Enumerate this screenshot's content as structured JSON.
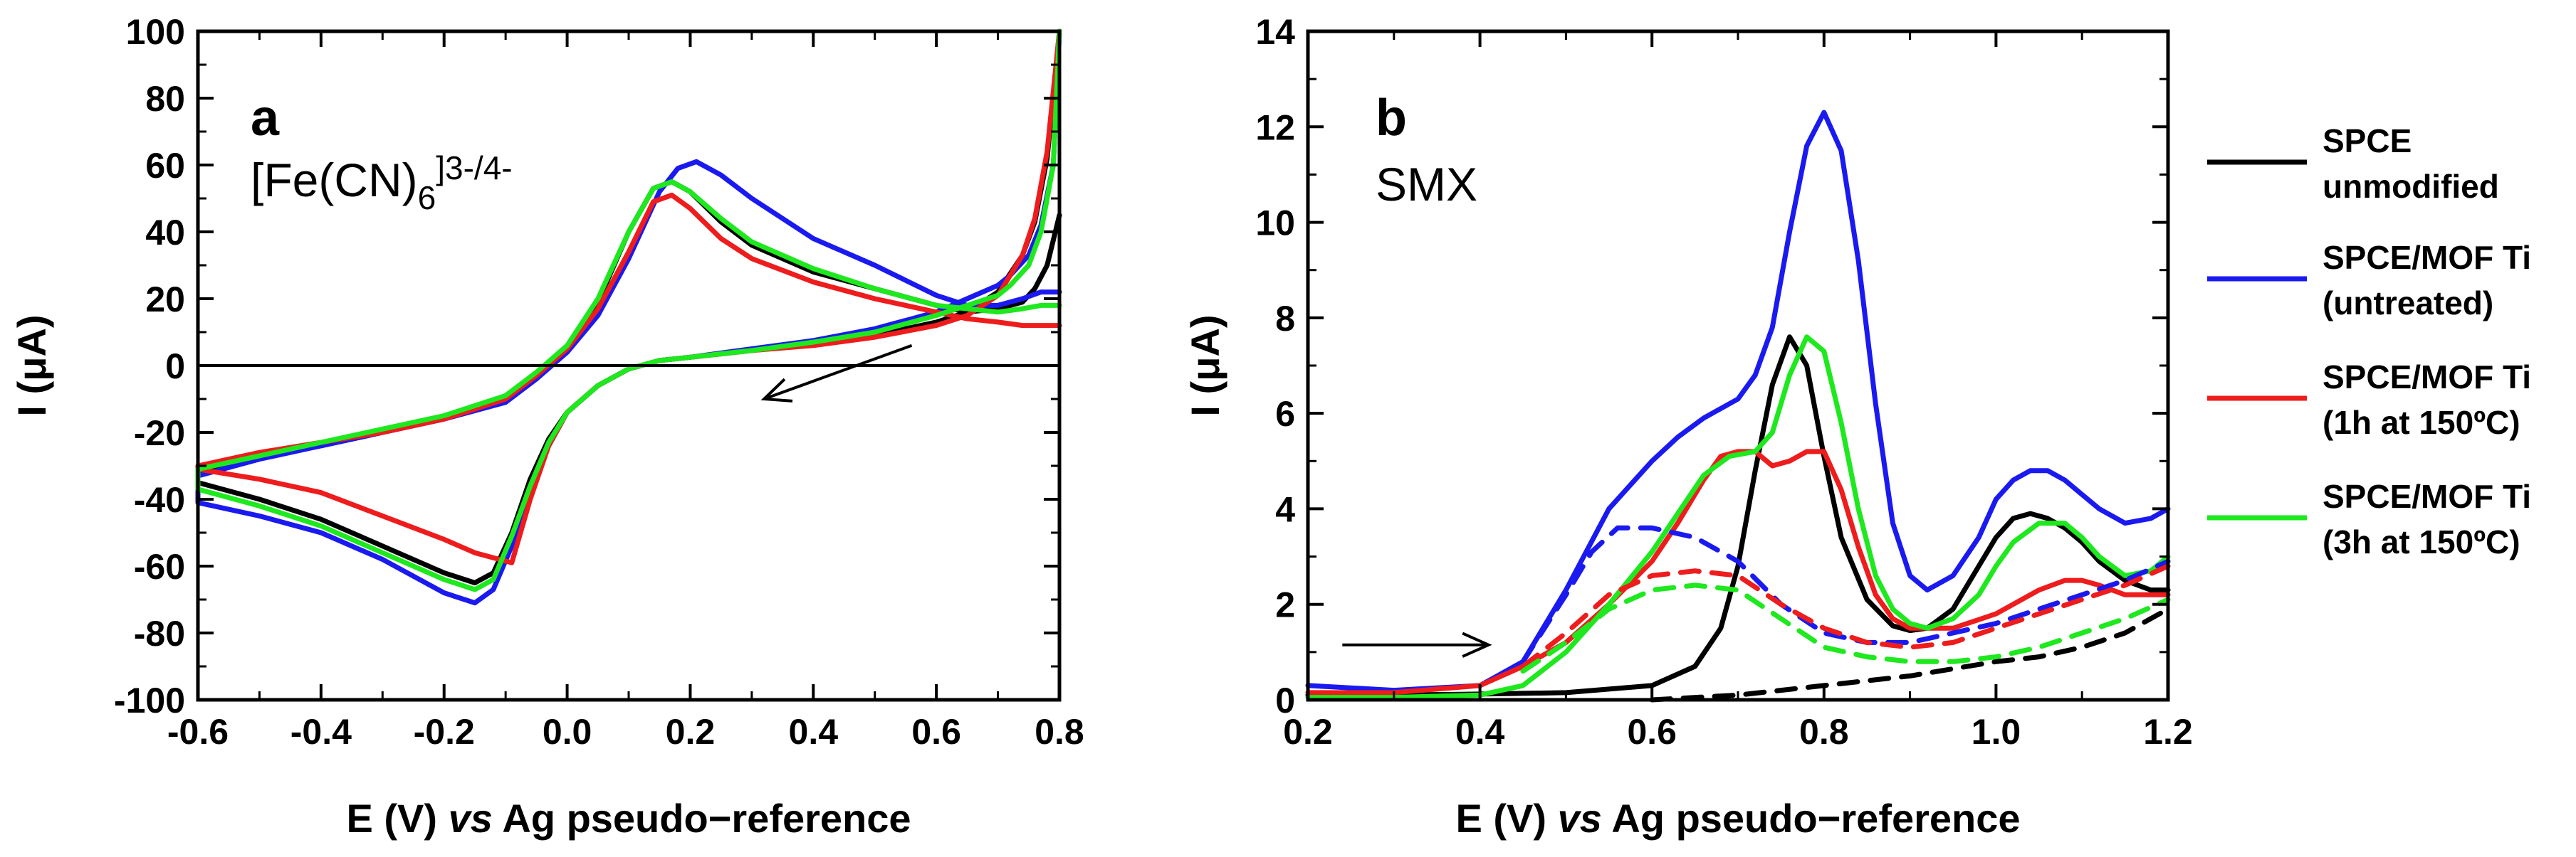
{
  "colors": {
    "black": "#000000",
    "blue": "#1a1af0",
    "red": "#ee1c1c",
    "green": "#1ee81e"
  },
  "chart_data": [
    {
      "type": "line",
      "panel": "a",
      "label": "[Fe(CN)6]3-/4-",
      "label_main": "[Fe(CN)",
      "label_sub": "6",
      "label_sup": "]3-/4-",
      "xlabel_pre": "E (V) ",
      "xlabel_it": "vs",
      "xlabel_post": " Ag pseudo−reference",
      "ylabel": "I (μA)",
      "xlim": [
        -0.6,
        0.8
      ],
      "ylim": [
        -100,
        100
      ],
      "xticks": [
        -0.6,
        -0.4,
        -0.2,
        0.0,
        0.2,
        0.4,
        0.6,
        0.8
      ],
      "xtick_labels": [
        "-0.6",
        "-0.4",
        "-0.2",
        "0.0",
        "0.2",
        "0.4",
        "0.6",
        "0.8"
      ],
      "yticks": [
        100,
        80,
        60,
        40,
        20,
        0,
        -20,
        -40,
        -60,
        -80,
        -100
      ],
      "ytick_labels": [
        "100",
        "80",
        "60",
        "40",
        "20",
        "0",
        "-20",
        "-40",
        "-60",
        "-80",
        "-100"
      ],
      "zero_line": true,
      "arrow": {
        "from": [
          0.56,
          6
        ],
        "to": [
          0.32,
          -10
        ]
      },
      "series": [
        {
          "name": "black",
          "color": "#000000",
          "x": [
            0.8,
            0.78,
            0.76,
            0.74,
            0.7,
            0.65,
            0.6,
            0.5,
            0.4,
            0.3,
            0.2,
            0.15,
            0.1,
            0.05,
            0.0,
            -0.03,
            -0.06,
            -0.09,
            -0.12,
            -0.15,
            -0.2,
            -0.3,
            -0.4,
            -0.5,
            -0.6,
            -0.6,
            -0.5,
            -0.4,
            -0.3,
            -0.2,
            -0.1,
            -0.05,
            0.0,
            0.05,
            0.1,
            0.14,
            0.17,
            0.2,
            0.25,
            0.3,
            0.4,
            0.5,
            0.6,
            0.65,
            0.7,
            0.74,
            0.76,
            0.78,
            0.8
          ],
          "y": [
            100,
            62,
            43,
            33,
            22,
            16,
            13,
            9,
            6.5,
            4.5,
            2.5,
            1.5,
            -1,
            -6,
            -14,
            -22,
            -34,
            -50,
            -62,
            -65,
            -62,
            -54,
            -46,
            -40,
            -35,
            -32,
            -27,
            -24,
            -20,
            -16,
            -10,
            -3,
            5,
            19,
            40,
            53,
            55,
            52,
            43,
            36,
            28,
            23,
            18,
            16,
            17,
            19,
            23,
            30,
            45
          ]
        },
        {
          "name": "blue",
          "color": "#1a1af0",
          "x": [
            0.8,
            0.79,
            0.77,
            0.75,
            0.72,
            0.7,
            0.65,
            0.6,
            0.5,
            0.4,
            0.3,
            0.2,
            0.15,
            0.1,
            0.05,
            0.0,
            -0.03,
            -0.06,
            -0.09,
            -0.12,
            -0.15,
            -0.2,
            -0.3,
            -0.4,
            -0.5,
            -0.6,
            -0.6,
            -0.5,
            -0.4,
            -0.3,
            -0.2,
            -0.1,
            -0.05,
            0.0,
            0.05,
            0.1,
            0.15,
            0.18,
            0.21,
            0.25,
            0.3,
            0.4,
            0.5,
            0.6,
            0.65,
            0.7,
            0.74,
            0.77,
            0.8
          ],
          "y": [
            100,
            60,
            42,
            33,
            27,
            24,
            20,
            16,
            11,
            7.5,
            5,
            2.5,
            1.5,
            -1,
            -6,
            -14,
            -24,
            -37,
            -54,
            -67,
            -71,
            -68,
            -58,
            -50,
            -45,
            -41,
            -33,
            -28,
            -24,
            -20,
            -16,
            -11,
            -4,
            4,
            15,
            32,
            52,
            59,
            61,
            57,
            50,
            38,
            30,
            21,
            18,
            18,
            20,
            22,
            22
          ]
        },
        {
          "name": "red",
          "color": "#ee1c1c",
          "x": [
            0.8,
            0.78,
            0.76,
            0.74,
            0.7,
            0.65,
            0.6,
            0.5,
            0.4,
            0.3,
            0.2,
            0.15,
            0.1,
            0.05,
            0.0,
            -0.03,
            -0.06,
            -0.09,
            -0.15,
            -0.2,
            -0.3,
            -0.4,
            -0.5,
            -0.6,
            -0.6,
            -0.5,
            -0.4,
            -0.3,
            -0.2,
            -0.1,
            -0.05,
            0.0,
            0.05,
            0.1,
            0.14,
            0.17,
            0.2,
            0.25,
            0.3,
            0.4,
            0.5,
            0.6,
            0.65,
            0.7,
            0.74,
            0.77,
            0.8
          ],
          "y": [
            100,
            64,
            44,
            33,
            21,
            15,
            12,
            8.5,
            6,
            4.5,
            2.5,
            1.5,
            -1,
            -6,
            -14,
            -24,
            -40,
            -59,
            -56,
            -52,
            -45,
            -38,
            -34,
            -31,
            -30,
            -26,
            -23,
            -20,
            -16,
            -10,
            -3,
            5,
            17,
            34,
            49,
            51,
            47,
            38,
            32,
            25,
            20,
            16,
            14,
            13,
            12,
            12,
            12
          ]
        },
        {
          "name": "green",
          "color": "#1ee81e",
          "x": [
            0.8,
            0.79,
            0.77,
            0.75,
            0.72,
            0.7,
            0.65,
            0.6,
            0.5,
            0.4,
            0.3,
            0.2,
            0.15,
            0.1,
            0.05,
            0.0,
            -0.03,
            -0.06,
            -0.09,
            -0.12,
            -0.15,
            -0.2,
            -0.3,
            -0.4,
            -0.5,
            -0.6,
            -0.6,
            -0.5,
            -0.4,
            -0.3,
            -0.2,
            -0.1,
            -0.05,
            0.0,
            0.05,
            0.1,
            0.14,
            0.17,
            0.2,
            0.25,
            0.3,
            0.4,
            0.5,
            0.6,
            0.65,
            0.7,
            0.74,
            0.77,
            0.8
          ],
          "y": [
            100,
            60,
            40,
            30,
            24,
            21,
            18,
            15,
            10,
            7,
            4.5,
            2.5,
            1.5,
            -1,
            -6,
            -14,
            -23,
            -36,
            -51,
            -64,
            -67,
            -64,
            -56,
            -48,
            -42,
            -37,
            -31,
            -27,
            -23,
            -19,
            -15,
            -9,
            -2,
            6,
            20,
            40,
            53,
            55,
            52,
            44,
            37,
            29,
            23,
            18,
            17,
            16,
            17,
            18,
            18
          ]
        }
      ]
    },
    {
      "type": "line",
      "panel": "b",
      "label": "SMX",
      "xlabel_pre": "E (V) ",
      "xlabel_it": "vs",
      "xlabel_post": " Ag pseudo−reference",
      "ylabel": "I (μA)",
      "xlim": [
        0.2,
        1.2
      ],
      "ylim": [
        0,
        14
      ],
      "xticks": [
        0.2,
        0.4,
        0.6,
        0.8,
        1.0,
        1.2
      ],
      "xtick_labels": [
        "0.2",
        "0.4",
        "0.6",
        "0.8",
        "1.0",
        "1.2"
      ],
      "yticks": [
        0,
        2,
        4,
        6,
        8,
        10,
        12,
        14
      ],
      "ytick_labels": [
        "0",
        "2",
        "4",
        "6",
        "8",
        "10",
        "12",
        "14"
      ],
      "arrow": {
        "from": [
          0.24,
          1.15
        ],
        "to": [
          0.41,
          1.15
        ]
      },
      "legend": [
        {
          "line1": "SPCE",
          "line2": "unmodified",
          "color": "#000000"
        },
        {
          "line1": "SPCE/MOF Ti",
          "line2": "(untreated)",
          "color": "#1a1af0"
        },
        {
          "line1": "SPCE/MOF Ti",
          "line2": "(1h at 150ºC)",
          "color": "#ee1c1c"
        },
        {
          "line1": "SPCE/MOF Ti",
          "line2": "(3h at 150ºC)",
          "color": "#1ee81e"
        }
      ],
      "series": [
        {
          "name": "SPCE unmodified",
          "color": "#000000",
          "dashed": false,
          "x": [
            0.2,
            0.3,
            0.4,
            0.5,
            0.6,
            0.65,
            0.68,
            0.7,
            0.72,
            0.74,
            0.76,
            0.78,
            0.8,
            0.82,
            0.85,
            0.88,
            0.9,
            0.92,
            0.95,
            0.98,
            1.0,
            1.02,
            1.04,
            1.06,
            1.08,
            1.1,
            1.12,
            1.15,
            1.18,
            1.2
          ],
          "y": [
            0.1,
            0.1,
            0.12,
            0.15,
            0.3,
            0.7,
            1.5,
            2.8,
            4.8,
            6.6,
            7.6,
            7.0,
            5.1,
            3.4,
            2.1,
            1.55,
            1.45,
            1.5,
            1.9,
            2.8,
            3.4,
            3.8,
            3.9,
            3.8,
            3.6,
            3.3,
            2.9,
            2.5,
            2.3,
            2.3
          ]
        },
        {
          "name": "SPCE/MOF Ti (untreated)",
          "color": "#1a1af0",
          "dashed": false,
          "x": [
            0.2,
            0.3,
            0.4,
            0.45,
            0.5,
            0.55,
            0.58,
            0.6,
            0.63,
            0.66,
            0.7,
            0.72,
            0.74,
            0.76,
            0.78,
            0.8,
            0.82,
            0.84,
            0.86,
            0.88,
            0.9,
            0.92,
            0.95,
            0.98,
            1.0,
            1.02,
            1.04,
            1.06,
            1.08,
            1.1,
            1.12,
            1.15,
            1.18,
            1.2
          ],
          "y": [
            0.3,
            0.2,
            0.3,
            0.8,
            2.3,
            4.0,
            4.6,
            5.0,
            5.5,
            5.9,
            6.3,
            6.8,
            7.8,
            9.8,
            11.6,
            12.3,
            11.5,
            9.2,
            6.2,
            3.7,
            2.6,
            2.3,
            2.6,
            3.4,
            4.2,
            4.6,
            4.8,
            4.8,
            4.6,
            4.3,
            4.0,
            3.7,
            3.8,
            4.0
          ]
        },
        {
          "name": "SPCE/MOF Ti (1h at 150ºC)",
          "color": "#ee1c1c",
          "dashed": false,
          "x": [
            0.2,
            0.3,
            0.4,
            0.45,
            0.5,
            0.55,
            0.6,
            0.63,
            0.66,
            0.68,
            0.7,
            0.72,
            0.74,
            0.76,
            0.78,
            0.8,
            0.82,
            0.84,
            0.86,
            0.88,
            0.9,
            0.95,
            1.0,
            1.05,
            1.08,
            1.1,
            1.12,
            1.15,
            1.2
          ],
          "y": [
            0.15,
            0.15,
            0.3,
            0.7,
            1.2,
            2.0,
            2.9,
            3.7,
            4.6,
            5.1,
            5.2,
            5.2,
            4.9,
            5.0,
            5.2,
            5.2,
            4.4,
            3.2,
            2.2,
            1.7,
            1.5,
            1.5,
            1.8,
            2.3,
            2.5,
            2.5,
            2.4,
            2.2,
            2.2
          ]
        },
        {
          "name": "SPCE/MOF Ti (3h at 150ºC)",
          "color": "#1ee81e",
          "dashed": false,
          "x": [
            0.2,
            0.3,
            0.4,
            0.45,
            0.5,
            0.55,
            0.6,
            0.63,
            0.66,
            0.69,
            0.72,
            0.74,
            0.76,
            0.78,
            0.8,
            0.82,
            0.84,
            0.86,
            0.88,
            0.9,
            0.92,
            0.95,
            0.98,
            1.0,
            1.02,
            1.05,
            1.08,
            1.1,
            1.12,
            1.15,
            1.18,
            1.2
          ],
          "y": [
            0.05,
            0.05,
            0.1,
            0.3,
            1.0,
            2.0,
            3.1,
            3.9,
            4.7,
            5.1,
            5.2,
            5.6,
            6.8,
            7.6,
            7.3,
            5.8,
            4.0,
            2.6,
            1.9,
            1.6,
            1.5,
            1.7,
            2.2,
            2.8,
            3.3,
            3.7,
            3.7,
            3.4,
            3.0,
            2.6,
            2.7,
            3.0
          ]
        },
        {
          "name": "SPCE unmodified blank",
          "color": "#000000",
          "dashed": true,
          "x": [
            0.6,
            0.7,
            0.8,
            0.9,
            1.0,
            1.05,
            1.1,
            1.15,
            1.2
          ],
          "y": [
            0.0,
            0.1,
            0.3,
            0.5,
            0.8,
            0.9,
            1.1,
            1.4,
            1.9
          ]
        },
        {
          "name": "SPCE/MOF Ti (untreated) blank",
          "color": "#1a1af0",
          "dashed": true,
          "x": [
            0.45,
            0.5,
            0.53,
            0.56,
            0.6,
            0.65,
            0.7,
            0.75,
            0.8,
            0.85,
            0.9,
            0.95,
            1.0,
            1.05,
            1.1,
            1.15,
            1.2
          ],
          "y": [
            0.8,
            2.2,
            3.1,
            3.6,
            3.6,
            3.4,
            2.9,
            2.0,
            1.4,
            1.2,
            1.2,
            1.4,
            1.6,
            1.9,
            2.2,
            2.5,
            2.9
          ]
        },
        {
          "name": "SPCE/MOF Ti (1h at 150ºC) blank",
          "color": "#ee1c1c",
          "dashed": true,
          "x": [
            0.45,
            0.5,
            0.55,
            0.6,
            0.65,
            0.7,
            0.75,
            0.8,
            0.85,
            0.9,
            0.95,
            1.0,
            1.05,
            1.1,
            1.15,
            1.2
          ],
          "y": [
            0.7,
            1.4,
            2.2,
            2.6,
            2.7,
            2.6,
            2.0,
            1.5,
            1.2,
            1.1,
            1.2,
            1.5,
            1.8,
            2.1,
            2.4,
            2.8
          ]
        },
        {
          "name": "SPCE/MOF Ti (3h at 150ºC) blank",
          "color": "#1ee81e",
          "dashed": true,
          "x": [
            0.45,
            0.5,
            0.55,
            0.6,
            0.65,
            0.7,
            0.75,
            0.8,
            0.85,
            0.9,
            0.95,
            1.0,
            1.05,
            1.1,
            1.15,
            1.2
          ],
          "y": [
            0.6,
            1.2,
            1.9,
            2.3,
            2.4,
            2.3,
            1.7,
            1.1,
            0.9,
            0.8,
            0.8,
            0.9,
            1.1,
            1.4,
            1.7,
            2.1
          ]
        }
      ]
    }
  ]
}
